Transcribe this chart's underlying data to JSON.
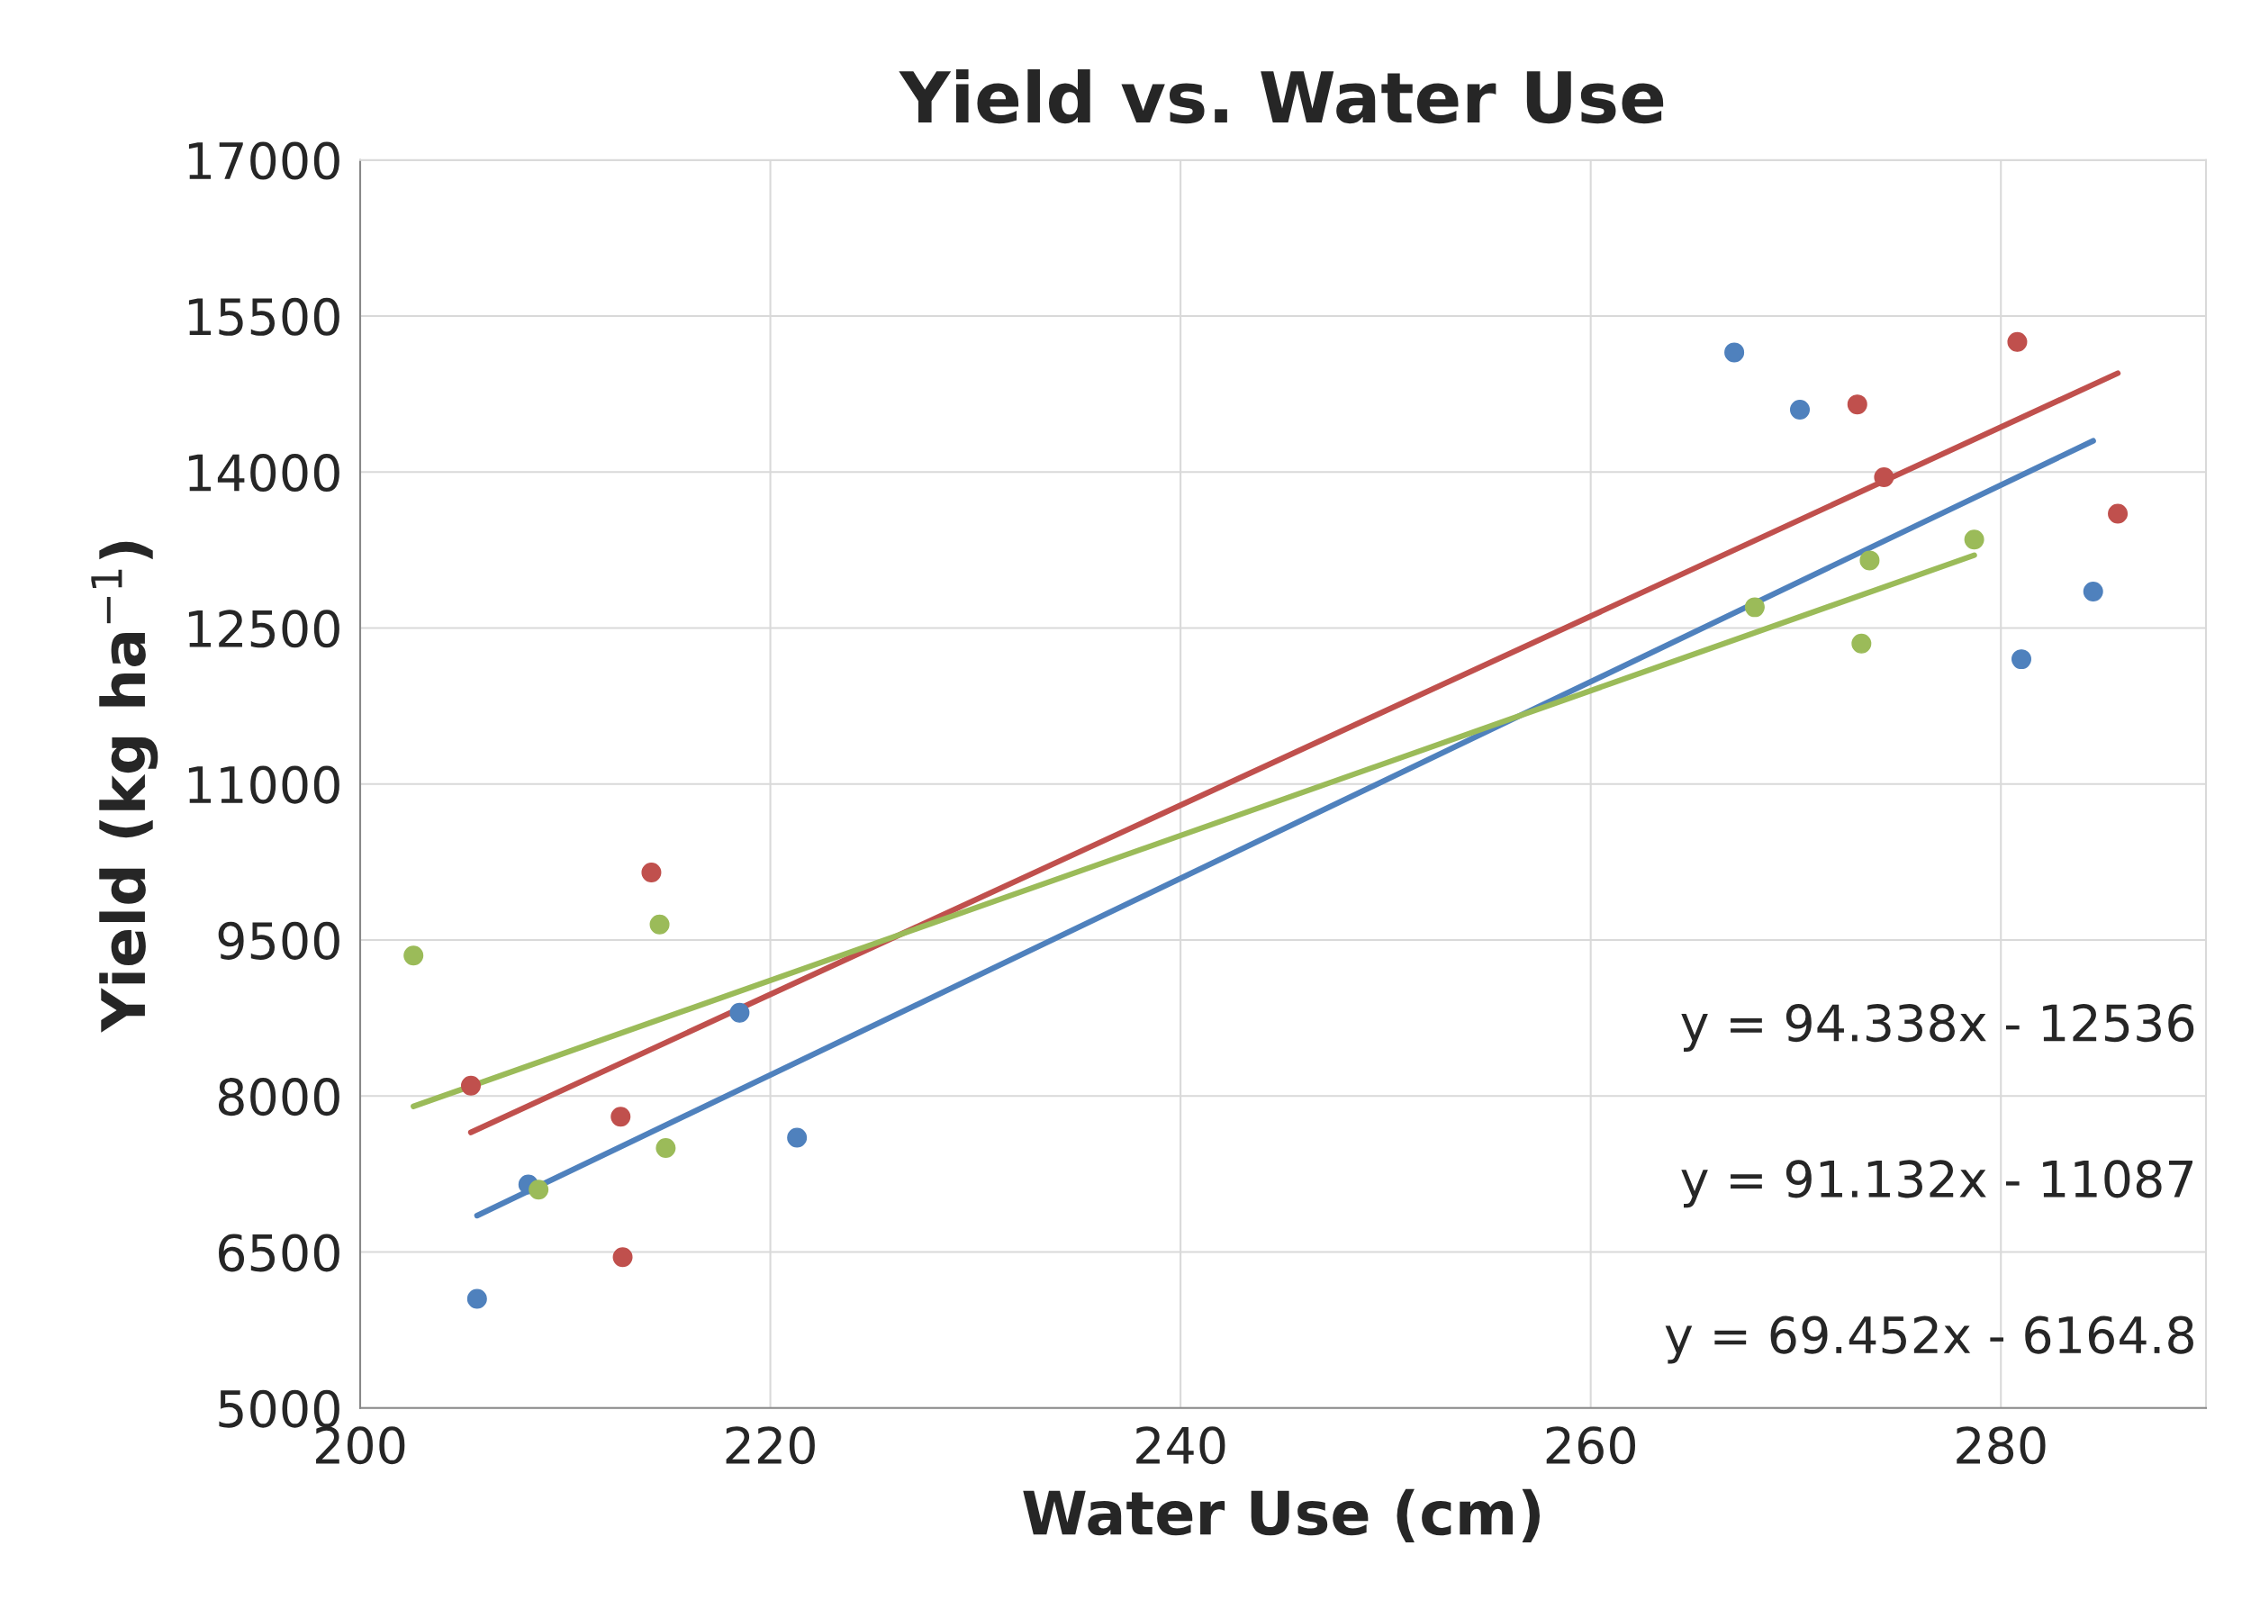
{
  "chart_data": {
    "type": "scatter",
    "title": "Yield vs. Water Use",
    "xlabel": "Water Use (cm)",
    "ylabel": "Yield (kg ha$^{−1}$)",
    "xlim": [
      200,
      290
    ],
    "xticks": [
      200,
      220,
      240,
      260,
      280
    ],
    "ylim": [
      5000,
      17000
    ],
    "yticks": [
      5000,
      6500,
      8000,
      9500,
      11000,
      12500,
      14000,
      15500,
      17000
    ],
    "grid": true,
    "legend": false,
    "series": [
      {
        "color": "#4f81bd",
        "marker": "circle",
        "x": [
          205.7,
          208.2,
          218.5,
          221.3,
          267.0,
          270.2,
          281.0,
          284.5
        ],
        "values": [
          6050,
          7150,
          8800,
          7600,
          15150,
          14600,
          12200,
          12850
        ]
      },
      {
        "color": "#c0504d",
        "marker": "circle",
        "x": [
          205.4,
          212.7,
          212.8,
          214.2,
          273.0,
          274.3,
          280.8,
          285.7
        ],
        "values": [
          8100,
          7800,
          6450,
          10150,
          14650,
          13950,
          15250,
          13600
        ]
      },
      {
        "color": "#9bbb59",
        "marker": "circle",
        "x": [
          202.6,
          208.7,
          214.6,
          214.9,
          268.0,
          273.2,
          273.6,
          278.7
        ],
        "values": [
          9350,
          7100,
          9650,
          7500,
          12700,
          12350,
          13150,
          13350
        ]
      },
      {
        "type": "line",
        "marker": "none",
        "color": "#4f81bd",
        "x": [
          205.7,
          284.5
        ],
        "values": [
          6850,
          14300
        ]
      },
      {
        "type": "line",
        "marker": "none",
        "color": "#c0504d",
        "x": [
          205.4,
          285.7
        ],
        "values": [
          7650,
          14950
        ]
      },
      {
        "type": "line",
        "marker": "none",
        "color": "#9bbb59",
        "x": [
          202.6,
          278.7
        ],
        "values": [
          7900,
          13200
        ]
      }
    ],
    "annotations": [
      "y = 94.338x - 12536",
      "y = 91.132x - 11087",
      "y = 69.452x - 6164.8"
    ]
  }
}
